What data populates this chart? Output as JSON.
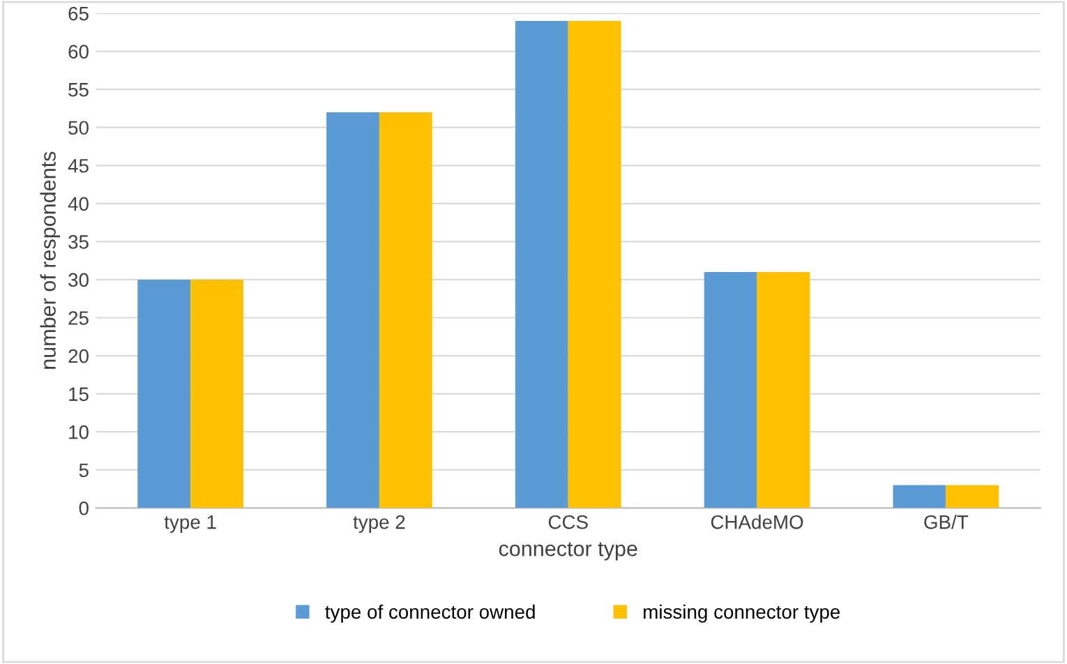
{
  "chart_data": {
    "type": "bar",
    "xlabel": "connector type",
    "ylabel": "number of respondents",
    "categories": [
      "type 1",
      "type 2",
      "CCS",
      "CHAdeMO",
      "GB/T"
    ],
    "series": [
      {
        "name": "type of connector owned",
        "color": "#5b9bd5",
        "values": [
          30,
          52,
          64,
          31,
          3
        ]
      },
      {
        "name": "missing connector type",
        "color": "#ffc000",
        "values": [
          30,
          52,
          64,
          31,
          3
        ]
      }
    ],
    "ylim": [
      0,
      65
    ],
    "yticks": [
      0,
      5,
      10,
      15,
      20,
      25,
      30,
      35,
      40,
      45,
      50,
      55,
      60,
      65
    ],
    "grid": "y",
    "legend": "bottom"
  }
}
